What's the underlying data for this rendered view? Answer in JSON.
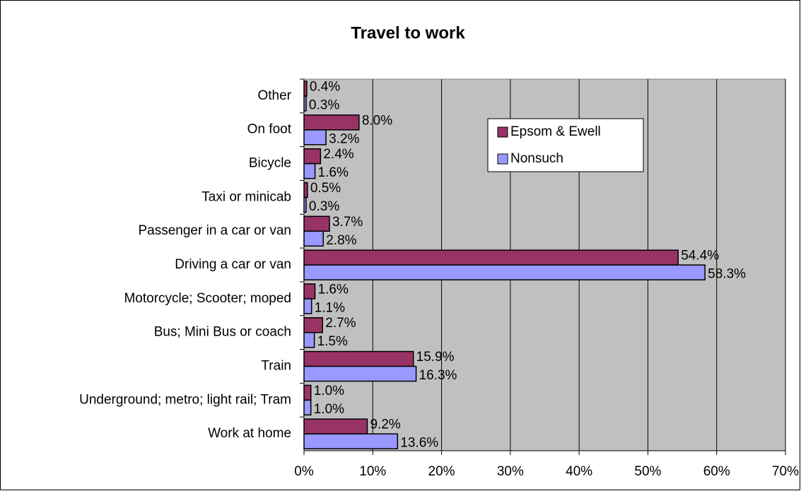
{
  "chart_data": {
    "type": "bar",
    "orientation": "horizontal",
    "title": "Travel to work",
    "categories": [
      "Other",
      "On foot",
      "Bicycle",
      "Taxi or minicab",
      "Passenger in a car or van",
      "Driving a car or van",
      "Motorcycle; Scooter; moped",
      "Bus; Mini Bus or coach",
      "Train",
      "Underground; metro; light rail; Tram",
      "Work at home"
    ],
    "series": [
      {
        "name": "Epsom & Ewell",
        "color": "#993366",
        "values": [
          0.4,
          8.0,
          2.4,
          0.5,
          3.7,
          54.4,
          1.6,
          2.7,
          15.9,
          1.0,
          9.2
        ],
        "value_labels": [
          "0.4%",
          "8.0%",
          "2.4%",
          "0.5%",
          "3.7%",
          "54.4%",
          "1.6%",
          "2.7%",
          "15.9%",
          "1.0%",
          "9.2%"
        ]
      },
      {
        "name": "Nonsuch",
        "color": "#9999ff",
        "values": [
          0.3,
          3.2,
          1.6,
          0.3,
          2.8,
          58.3,
          1.1,
          1.5,
          16.3,
          1.0,
          13.6
        ],
        "value_labels": [
          "0.3%",
          "3.2%",
          "1.6%",
          "0.3%",
          "2.8%",
          "58.3%",
          "1.1%",
          "1.5%",
          "16.3%",
          "1.0%",
          "13.6%"
        ]
      }
    ],
    "xlim": [
      0,
      70
    ],
    "xticks": [
      {
        "value": 0,
        "label": "0%"
      },
      {
        "value": 10,
        "label": "10%"
      },
      {
        "value": 20,
        "label": "20%"
      },
      {
        "value": 30,
        "label": "30%"
      },
      {
        "value": 40,
        "label": "40%"
      },
      {
        "value": 50,
        "label": "50%"
      },
      {
        "value": 60,
        "label": "60%"
      },
      {
        "value": 70,
        "label": "70%"
      }
    ],
    "grid": true,
    "legend": "top-right"
  }
}
